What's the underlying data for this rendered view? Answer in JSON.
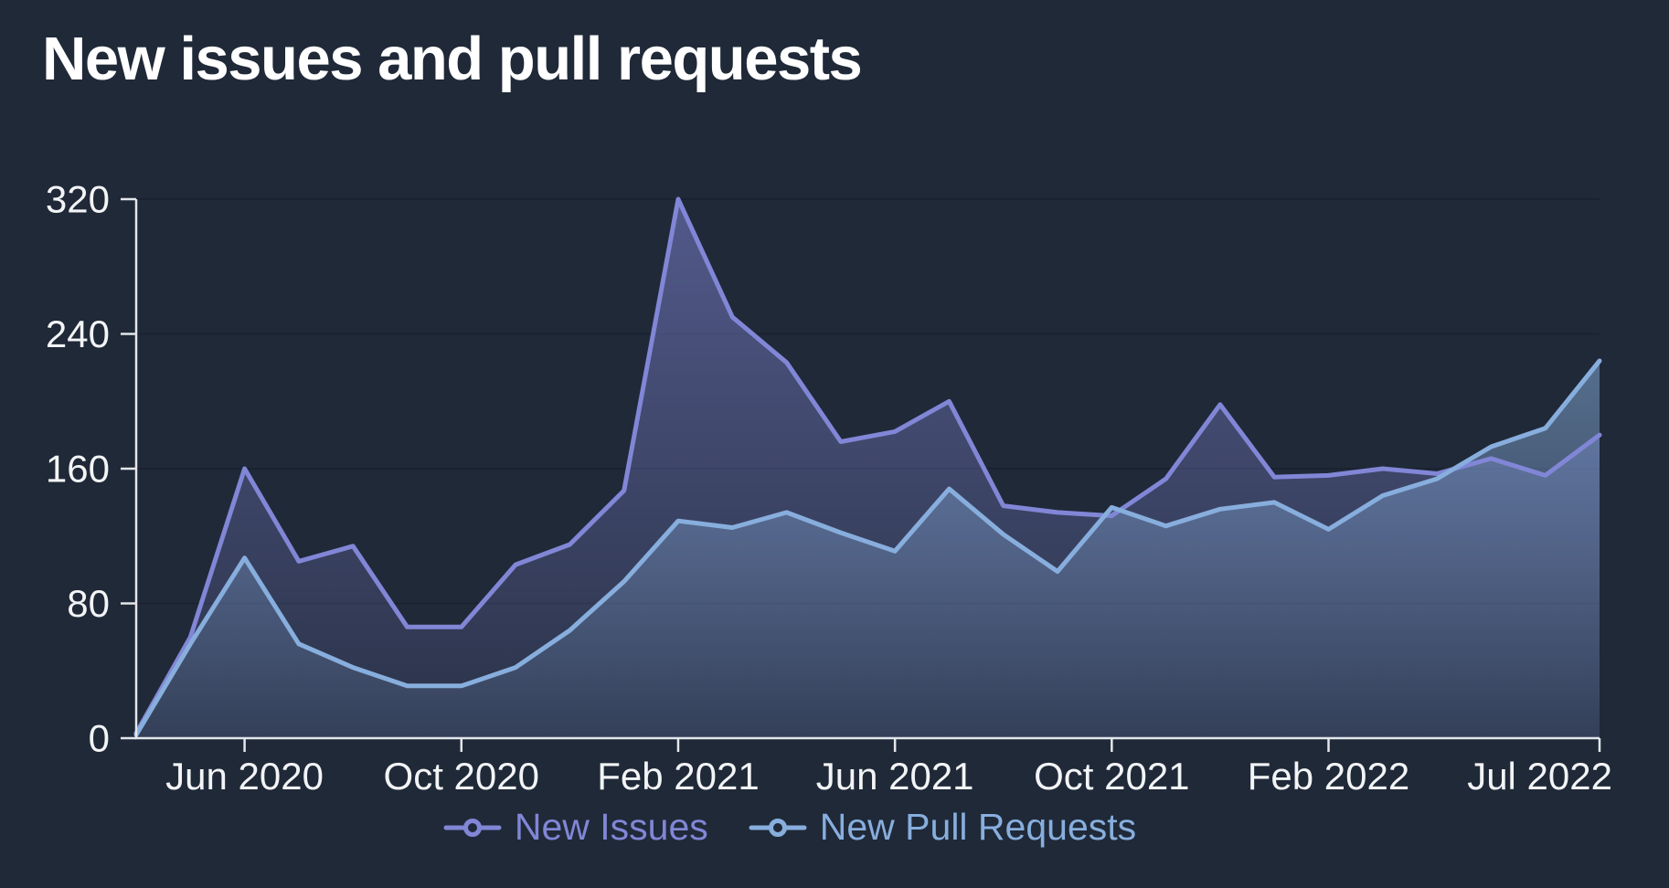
{
  "title": "New issues and pull requests",
  "colors": {
    "background": "#202938",
    "issues": "#8186d6",
    "pulls": "#87aedd",
    "axis": "#e3e7eb",
    "tick_label": "#f2f4f6",
    "gridline": "#1a2231",
    "title_text": "#ffffff"
  },
  "legend": {
    "items": [
      {
        "label": "New Issues",
        "series": "issues"
      },
      {
        "label": "New Pull Requests",
        "series": "pulls"
      }
    ]
  },
  "chart_data": {
    "type": "area",
    "title": "New issues and pull requests",
    "x": [
      "Apr 2020",
      "May 2020",
      "Jun 2020",
      "Jul 2020",
      "Aug 2020",
      "Sep 2020",
      "Oct 2020",
      "Nov 2020",
      "Dec 2020",
      "Jan 2021",
      "Feb 2021",
      "Mar 2021",
      "Apr 2021",
      "May 2021",
      "Jun 2021",
      "Jul 2021",
      "Aug 2021",
      "Sep 2021",
      "Oct 2021",
      "Nov 2021",
      "Dec 2021",
      "Jan 2022",
      "Feb 2022",
      "Mar 2022",
      "Apr 2022",
      "May 2022",
      "Jun 2022",
      "Jul 2022"
    ],
    "series": [
      {
        "name": "New Issues",
        "color": "#8186d6",
        "values": [
          3,
          60,
          160,
          105,
          114,
          66,
          66,
          103,
          115,
          147,
          320,
          250,
          223,
          176,
          182,
          200,
          138,
          134,
          132,
          154,
          198,
          155,
          156,
          160,
          157,
          166,
          156,
          180
        ]
      },
      {
        "name": "New Pull Requests",
        "color": "#87aedd",
        "values": [
          2,
          56,
          107,
          56,
          42,
          31,
          31,
          42,
          64,
          93,
          129,
          125,
          134,
          122,
          111,
          148,
          121,
          99,
          137,
          126,
          136,
          140,
          124,
          144,
          154,
          173,
          184,
          224
        ]
      }
    ],
    "ylim": [
      0,
      320
    ],
    "y_ticks": [
      0,
      80,
      160,
      240,
      320
    ],
    "x_tick_labels": [
      "Jun 2020",
      "Oct 2020",
      "Feb 2021",
      "Jun 2021",
      "Oct 2021",
      "Feb 2022",
      "Jul 2022"
    ],
    "x_tick_indices": [
      2,
      6,
      10,
      14,
      18,
      22,
      27
    ],
    "grid": "horizontal",
    "legend_position": "bottom"
  }
}
